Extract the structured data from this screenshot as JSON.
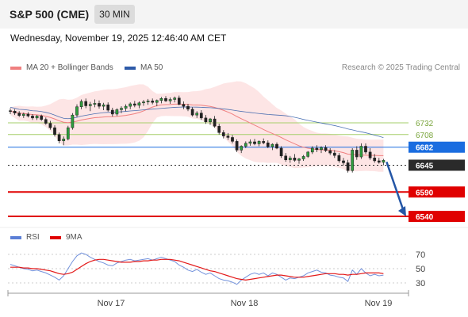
{
  "header": {
    "title": "S&P 500 (CME)",
    "timeframe": "30 MIN"
  },
  "datetime": "Wednesday, November 19, 2025 12:46:40 AM CET",
  "legend": {
    "bb": {
      "label": "MA 20 + Bollinger Bands",
      "color": "#f08080"
    },
    "ma50": {
      "label": "MA 50",
      "color": "#2e5aa8"
    },
    "credit": "Research © 2025 Trading Central"
  },
  "rsi_legend": {
    "rsi": {
      "label": "RSI",
      "color": "#5b7fd6"
    },
    "ma9": {
      "label": "9MA",
      "color": "#e00000"
    }
  },
  "chart_data": [
    {
      "type": "candlestick",
      "title": "",
      "x_ticks": [
        "Nov 17",
        "Nov 18",
        "Nov 19"
      ],
      "levels": [
        {
          "value": 6732,
          "label": "6732",
          "color": "#a6cf6b",
          "style": "line"
        },
        {
          "value": 6708,
          "label": "6708",
          "color": "#a6cf6b",
          "style": "line"
        },
        {
          "value": 6682,
          "label": "6682",
          "color": "#1a6de0",
          "style": "box"
        },
        {
          "value": 6645,
          "label": "6645",
          "color": "#2a2a2a",
          "style": "box"
        },
        {
          "value": 6590,
          "label": "6590",
          "color": "#e00000",
          "style": "box"
        },
        {
          "value": 6540,
          "label": "6540",
          "color": "#e00000",
          "style": "box"
        }
      ],
      "candles": [
        [
          6757,
          6762,
          6750,
          6756
        ],
        [
          6756,
          6760,
          6748,
          6752
        ],
        [
          6752,
          6756,
          6744,
          6747
        ],
        [
          6747,
          6753,
          6742,
          6750
        ],
        [
          6750,
          6754,
          6743,
          6746
        ],
        [
          6746,
          6750,
          6738,
          6742
        ],
        [
          6742,
          6748,
          6738,
          6746
        ],
        [
          6746,
          6749,
          6736,
          6739
        ],
        [
          6739,
          6743,
          6728,
          6731
        ],
        [
          6731,
          6736,
          6718,
          6722
        ],
        [
          6722,
          6727,
          6704,
          6708
        ],
        [
          6708,
          6712,
          6690,
          6695
        ],
        [
          6695,
          6704,
          6686,
          6699
        ],
        [
          6699,
          6726,
          6696,
          6722
        ],
        [
          6722,
          6752,
          6718,
          6748
        ],
        [
          6748,
          6770,
          6744,
          6765
        ],
        [
          6765,
          6780,
          6760,
          6776
        ],
        [
          6776,
          6782,
          6762,
          6767
        ],
        [
          6767,
          6775,
          6756,
          6770
        ],
        [
          6770,
          6780,
          6764,
          6772
        ],
        [
          6772,
          6778,
          6761,
          6766
        ],
        [
          6766,
          6773,
          6758,
          6769
        ],
        [
          6769,
          6774,
          6755,
          6758
        ],
        [
          6758,
          6763,
          6745,
          6750
        ],
        [
          6750,
          6762,
          6746,
          6759
        ],
        [
          6759,
          6766,
          6752,
          6762
        ],
        [
          6762,
          6770,
          6756,
          6766
        ],
        [
          6766,
          6774,
          6760,
          6771
        ],
        [
          6771,
          6777,
          6764,
          6768
        ],
        [
          6768,
          6776,
          6762,
          6773
        ],
        [
          6773,
          6779,
          6767,
          6775
        ],
        [
          6775,
          6781,
          6769,
          6777
        ],
        [
          6777,
          6782,
          6770,
          6774
        ],
        [
          6774,
          6780,
          6766,
          6778
        ],
        [
          6778,
          6785,
          6772,
          6782
        ],
        [
          6782,
          6787,
          6775,
          6777
        ],
        [
          6777,
          6784,
          6771,
          6780
        ],
        [
          6780,
          6786,
          6774,
          6783
        ],
        [
          6783,
          6788,
          6768,
          6770
        ],
        [
          6770,
          6776,
          6760,
          6766
        ],
        [
          6766,
          6771,
          6756,
          6760
        ],
        [
          6760,
          6764,
          6745,
          6748
        ],
        [
          6748,
          6756,
          6742,
          6752
        ],
        [
          6752,
          6758,
          6738,
          6742
        ],
        [
          6742,
          6748,
          6730,
          6734
        ],
        [
          6734,
          6742,
          6728,
          6740
        ],
        [
          6740,
          6746,
          6722,
          6725
        ],
        [
          6725,
          6730,
          6708,
          6712
        ],
        [
          6712,
          6717,
          6700,
          6705
        ],
        [
          6705,
          6711,
          6697,
          6702
        ],
        [
          6702,
          6707,
          6690,
          6694
        ],
        [
          6694,
          6698,
          6672,
          6676
        ],
        [
          6676,
          6686,
          6670,
          6684
        ],
        [
          6684,
          6694,
          6680,
          6690
        ],
        [
          6690,
          6698,
          6685,
          6693
        ],
        [
          6693,
          6699,
          6686,
          6689
        ],
        [
          6689,
          6696,
          6684,
          6694
        ],
        [
          6694,
          6700,
          6688,
          6691
        ],
        [
          6691,
          6696,
          6680,
          6683
        ],
        [
          6683,
          6690,
          6676,
          6688
        ],
        [
          6688,
          6692,
          6678,
          6680
        ],
        [
          6680,
          6684,
          6660,
          6664
        ],
        [
          6664,
          6670,
          6652,
          6656
        ],
        [
          6656,
          6664,
          6650,
          6660
        ],
        [
          6660,
          6668,
          6652,
          6655
        ],
        [
          6655,
          6660,
          6648,
          6658
        ],
        [
          6658,
          6666,
          6654,
          6663
        ],
        [
          6663,
          6674,
          6660,
          6672
        ],
        [
          6672,
          6684,
          6668,
          6680
        ],
        [
          6680,
          6686,
          6672,
          6677
        ],
        [
          6677,
          6684,
          6670,
          6681
        ],
        [
          6681,
          6686,
          6672,
          6675
        ],
        [
          6675,
          6680,
          6666,
          6670
        ],
        [
          6670,
          6676,
          6660,
          6665
        ],
        [
          6665,
          6670,
          6650,
          6654
        ],
        [
          6654,
          6660,
          6644,
          6650
        ],
        [
          6650,
          6656,
          6630,
          6634
        ],
        [
          6634,
          6680,
          6630,
          6676
        ],
        [
          6676,
          6684,
          6656,
          6662
        ],
        [
          6662,
          6690,
          6658,
          6684
        ],
        [
          6684,
          6690,
          6668,
          6672
        ],
        [
          6672,
          6680,
          6656,
          6660
        ],
        [
          6660,
          6668,
          6650,
          6654
        ],
        [
          6654,
          6660,
          6648,
          6651
        ],
        [
          6651,
          6658,
          6645,
          6655
        ]
      ]
    },
    {
      "type": "line",
      "title": "",
      "y_ticks": [
        70,
        50,
        30
      ],
      "series": [
        {
          "name": "RSI",
          "values": [
            56,
            54,
            52,
            50,
            49,
            47,
            48,
            46,
            44,
            41,
            38,
            34,
            40,
            50,
            60,
            68,
            72,
            70,
            66,
            63,
            60,
            58,
            55,
            54,
            58,
            60,
            62,
            63,
            61,
            62,
            63,
            64,
            62,
            64,
            66,
            64,
            62,
            60,
            55,
            52,
            48,
            46,
            49,
            45,
            42,
            44,
            40,
            36,
            34,
            33,
            31,
            28,
            34,
            38,
            42,
            44,
            42,
            44,
            40,
            44,
            42,
            38,
            34,
            37,
            36,
            38,
            40,
            44,
            46,
            48,
            45,
            44,
            41,
            40,
            38,
            37,
            32,
            48,
            42,
            50,
            44,
            40,
            42,
            40,
            41
          ]
        },
        {
          "name": "9MA",
          "values": [
            52,
            52,
            52,
            51,
            51,
            50,
            50,
            49,
            48,
            47,
            45,
            43,
            42,
            43,
            45,
            49,
            53,
            57,
            60,
            62,
            63,
            63,
            62,
            61,
            60,
            59,
            59,
            59,
            60,
            60,
            61,
            61,
            62,
            62,
            63,
            63,
            63,
            62,
            61,
            59,
            57,
            55,
            53,
            51,
            49,
            47,
            46,
            44,
            42,
            40,
            38,
            36,
            35,
            34,
            35,
            36,
            37,
            38,
            39,
            40,
            41,
            41,
            40,
            39,
            38,
            38,
            38,
            39,
            40,
            41,
            42,
            43,
            43,
            43,
            42,
            42,
            41,
            42,
            42,
            43,
            44,
            44,
            44,
            44,
            43
          ]
        }
      ]
    }
  ]
}
